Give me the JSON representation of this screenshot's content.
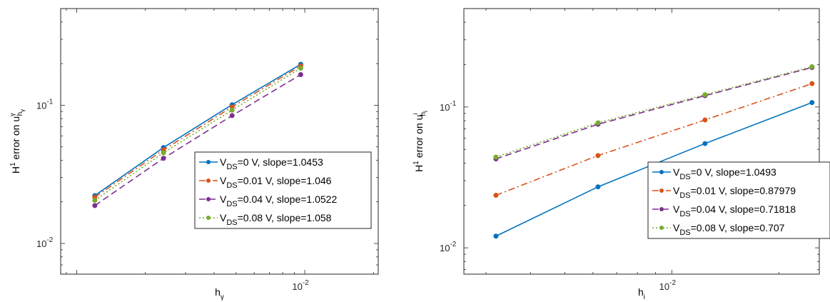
{
  "chart_data": [
    {
      "type": "line",
      "scale": {
        "x": "log",
        "y": "log"
      },
      "xlim": [
        0.00085,
        0.021
      ],
      "ylim": [
        0.006,
        0.5
      ],
      "x_ticks": [
        0.01
      ],
      "x_tick_labels": [
        {
          "base": "10",
          "exp": "-2"
        }
      ],
      "y_ticks": [
        0.01,
        0.1
      ],
      "y_tick_labels": [
        {
          "base": "10",
          "exp": "-2"
        },
        {
          "base": "10",
          "exp": "-1"
        }
      ],
      "xlabel": {
        "main": "h",
        "sub": "γ"
      },
      "ylabel": {
        "pre": "H",
        "sup": "1",
        "mid": " error on u",
        "sup2": "γ",
        "sub": "h",
        "subsub": "γ"
      },
      "legend_position": "lower-right",
      "x": [
        0.0012,
        0.0024,
        0.0048,
        0.0096
      ],
      "series": [
        {
          "name": "V",
          "name_sub": "DS",
          "name_rest": "=0 V, slope=1.0453",
          "color": "#0072BD",
          "dash": "solid",
          "values": [
            0.0222,
            0.0494,
            0.1008,
            0.1977
          ]
        },
        {
          "name": "V",
          "name_sub": "DS",
          "name_rest": "=0.01 V, slope=1.046",
          "color": "#D95319",
          "dash": "dashdot",
          "values": [
            0.0216,
            0.0475,
            0.0972,
            0.1923
          ]
        },
        {
          "name": "V",
          "name_sub": "DS",
          "name_rest": "=0.04 V, slope=1.0522",
          "color": "#7E2F8E",
          "dash": "dashed",
          "values": [
            0.0188,
            0.0413,
            0.0841,
            0.1665
          ]
        },
        {
          "name": "V",
          "name_sub": "DS",
          "name_rest": "=0.08 V, slope=1.058",
          "color": "#77AC30",
          "dash": "dotted",
          "values": [
            0.0205,
            0.0453,
            0.0921,
            0.1851
          ]
        }
      ]
    },
    {
      "type": "line",
      "scale": {
        "x": "log",
        "y": "log"
      },
      "xlim": [
        0.0026,
        0.026
      ],
      "ylim": [
        0.0065,
        0.5
      ],
      "x_ticks": [
        0.01
      ],
      "x_tick_labels": [
        {
          "base": "10",
          "exp": "-2"
        }
      ],
      "y_ticks": [
        0.01,
        0.1
      ],
      "y_tick_labels": [
        {
          "base": "10",
          "exp": "-2"
        },
        {
          "base": "10",
          "exp": "-1"
        }
      ],
      "xlabel": {
        "main": "h",
        "sub": "i"
      },
      "ylabel": {
        "pre": "H",
        "sup": "1",
        "mid": " error on u",
        "sup2": "i",
        "sub": "h",
        "subsub": "i"
      },
      "legend_position": "lower-right",
      "x": [
        0.0032,
        0.0062,
        0.0124,
        0.0248
      ],
      "series": [
        {
          "name": "V",
          "name_sub": "DS",
          "name_rest": "=0 V, slope=1.0493",
          "color": "#0072BD",
          "dash": "solid",
          "values": [
            0.0121,
            0.0271,
            0.055,
            0.1075
          ]
        },
        {
          "name": "V",
          "name_sub": "DS",
          "name_rest": "=0.01 V, slope=0.87979",
          "color": "#D95319",
          "dash": "dashdot",
          "values": [
            0.0236,
            0.0452,
            0.0809,
            0.1465
          ]
        },
        {
          "name": "V",
          "name_sub": "DS",
          "name_rest": "=0.04 V, slope=0.71818",
          "color": "#7E2F8E",
          "dash": "dashed",
          "values": [
            0.0428,
            0.0754,
            0.1203,
            0.1907
          ]
        },
        {
          "name": "V",
          "name_sub": "DS",
          "name_rest": "=0.08 V, slope=0.707",
          "color": "#77AC30",
          "dash": "dotted",
          "values": [
            0.0441,
            0.0772,
            0.1223,
            0.1933
          ]
        }
      ]
    }
  ]
}
